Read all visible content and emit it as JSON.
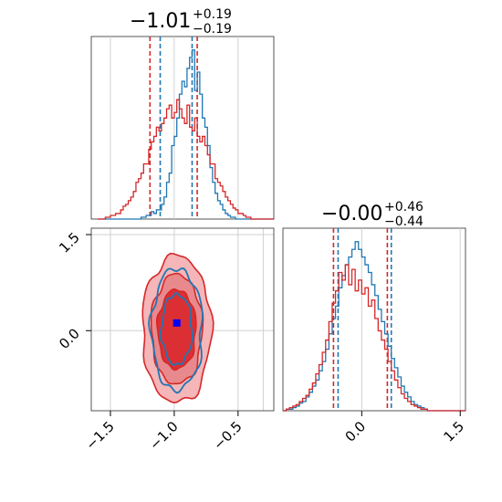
{
  "chart_data": [
    {
      "type": "histogram",
      "panel": "marginal-1",
      "title": "−1.01",
      "title_plus": "+0.19",
      "title_minus": "−0.19",
      "xlim": [
        -1.65,
        -0.22
      ],
      "grid": true,
      "quantile_lines": {
        "red": [
          -1.19,
          -0.82
        ],
        "blue": [
          -1.11,
          -0.86
        ]
      },
      "series": [
        {
          "color": "#1f77b4",
          "bin_start": -1.6,
          "bin_width": 0.02,
          "counts": [
            0,
            0,
            0,
            0,
            0,
            0,
            0,
            0,
            0,
            0,
            0,
            0,
            0,
            0,
            0,
            0,
            0,
            1,
            1,
            2,
            2,
            4,
            3,
            5,
            5,
            8,
            12,
            20,
            25,
            40,
            45,
            55,
            68,
            75,
            72,
            82,
            88,
            92,
            70,
            80,
            68,
            55,
            50,
            40,
            28,
            20,
            14,
            10,
            8,
            5,
            3,
            2,
            1,
            1,
            0,
            0,
            0,
            0,
            0,
            0,
            0,
            0,
            0,
            0,
            0,
            0,
            0,
            0,
            0,
            0,
            0
          ]
        },
        {
          "color": "#d62728",
          "bin_start": -1.6,
          "bin_width": 0.02,
          "counts": [
            0,
            0,
            0,
            1,
            1,
            2,
            2,
            3,
            3,
            5,
            7,
            8,
            10,
            12,
            15,
            20,
            22,
            25,
            30,
            30,
            38,
            42,
            45,
            50,
            48,
            52,
            55,
            60,
            62,
            55,
            58,
            65,
            60,
            55,
            52,
            62,
            50,
            48,
            55,
            45,
            42,
            45,
            40,
            35,
            30,
            30,
            22,
            20,
            18,
            15,
            12,
            10,
            8,
            6,
            5,
            3,
            3,
            2,
            1,
            1,
            0,
            0,
            0,
            0,
            0,
            0,
            0,
            0,
            0,
            0,
            0
          ]
        }
      ]
    },
    {
      "type": "histogram",
      "panel": "marginal-2",
      "title": "−0.00",
      "title_plus": "+0.46",
      "title_minus": "−0.44",
      "xlim": [
        -1.2,
        1.58
      ],
      "xticks": [
        "0.0",
        "1.5"
      ],
      "grid": true,
      "quantile_lines": {
        "red": [
          -0.43,
          0.39
        ],
        "blue": [
          -0.36,
          0.45
        ]
      },
      "series": [
        {
          "color": "#1f77b4",
          "bin_start": -1.2,
          "bin_width": 0.05,
          "counts": [
            0,
            1,
            1,
            2,
            3,
            5,
            6,
            9,
            12,
            16,
            20,
            26,
            32,
            40,
            50,
            60,
            68,
            80,
            88,
            95,
            100,
            105,
            110,
            105,
            100,
            95,
            90,
            82,
            75,
            66,
            58,
            50,
            42,
            34,
            28,
            22,
            16,
            12,
            9,
            6,
            4,
            3,
            2,
            1,
            0,
            0,
            0,
            0,
            0,
            0,
            0,
            0,
            0,
            0,
            0,
            0
          ]
        },
        {
          "color": "#d62728",
          "bin_start": -1.2,
          "bin_width": 0.05,
          "counts": [
            0,
            1,
            2,
            3,
            4,
            6,
            8,
            10,
            14,
            18,
            24,
            30,
            38,
            46,
            58,
            70,
            78,
            90,
            85,
            95,
            82,
            92,
            78,
            85,
            76,
            80,
            68,
            72,
            60,
            52,
            46,
            40,
            32,
            26,
            20,
            15,
            11,
            8,
            6,
            4,
            3,
            2,
            1,
            1,
            0,
            0,
            0,
            0,
            0,
            0,
            0,
            0,
            0,
            0,
            0,
            0
          ]
        }
      ]
    },
    {
      "type": "contour",
      "panel": "joint",
      "xlim": [
        -1.65,
        -0.22
      ],
      "ylim": [
        -1.25,
        1.6
      ],
      "xticks": [
        "−1.5",
        "−1.0",
        "−0.5"
      ],
      "yticks": [
        "1.5",
        "0.0"
      ],
      "grid": true,
      "truth_point": {
        "x": -0.98,
        "y": 0.12,
        "color": "#0000ff"
      },
      "red_levels": [
        {
          "rx": 0.27,
          "ry": 1.15,
          "fill": "#f4b6b8"
        },
        {
          "rx": 0.2,
          "ry": 0.86,
          "fill": "#e88a8d"
        },
        {
          "rx": 0.15,
          "ry": 0.62,
          "fill": "#dc2f33"
        }
      ],
      "blue_levels": [
        {
          "rx": 0.2,
          "ry": 0.95
        },
        {
          "rx": 0.12,
          "ry": 0.55
        }
      ],
      "center": {
        "x": -0.98,
        "y": 0.02
      }
    }
  ]
}
